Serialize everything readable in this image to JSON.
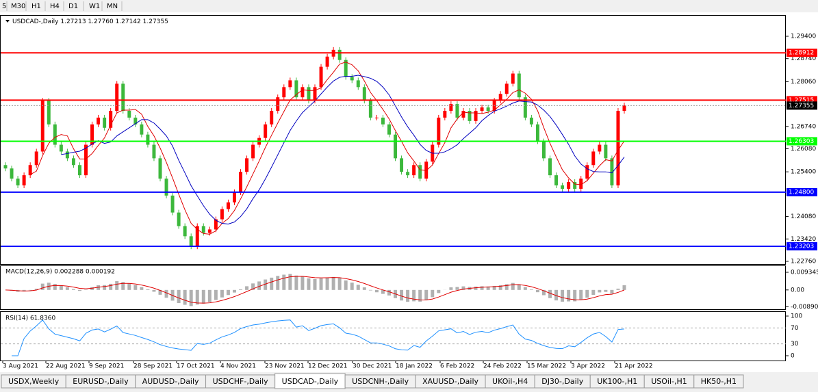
{
  "toolbar": {
    "timeframes": [
      "5",
      "M30",
      "H1",
      "H4",
      "D1",
      "W1",
      "MN"
    ]
  },
  "header": {
    "symbol": "USDCAD-,Daily",
    "open": 1.27213,
    "high": 1.2776,
    "low": 1.27142,
    "close": 1.27355,
    "open_label": "1.27213",
    "high_label": "1.27760",
    "low_label": "1.27142",
    "close_label": "1.27355"
  },
  "price_axis": {
    "ylim": [
      1.22679,
      1.30026
    ],
    "ticks": [
      {
        "value": 1.294,
        "label": "1.29400"
      },
      {
        "value": 1.2874,
        "label": "1.28740"
      },
      {
        "value": 1.2806,
        "label": "1.28060"
      },
      {
        "value": 1.2674,
        "label": "1.26740"
      },
      {
        "value": 1.2608,
        "label": "1.26080"
      },
      {
        "value": 1.254,
        "label": "1.25400"
      },
      {
        "value": 1.2408,
        "label": "1.24080"
      },
      {
        "value": 1.2342,
        "label": "1.23420"
      },
      {
        "value": 1.2276,
        "label": "1.22760"
      }
    ]
  },
  "levels": [
    {
      "value": 1.28912,
      "label": "1.28912",
      "color": "#ff0000"
    },
    {
      "value": 1.27515,
      "label": "1.27515",
      "color": "#ff0000"
    },
    {
      "value": 1.26303,
      "label": "1.26303",
      "color": "#00ff00"
    },
    {
      "value": 1.248,
      "label": "1.24800",
      "color": "#0000ff"
    },
    {
      "value": 1.23203,
      "label": "1.23203",
      "color": "#0000ff"
    }
  ],
  "current_price": {
    "value": 1.27355,
    "label": "1.27355"
  },
  "candles": {
    "first_open": 1.256,
    "up_color": "#ff0000",
    "down_color": "#3cb83c",
    "closes": [
      1.255,
      1.252,
      1.25,
      1.253,
      1.256,
      1.26,
      1.275,
      1.268,
      1.262,
      1.26,
      1.258,
      1.256,
      1.253,
      1.262,
      1.268,
      1.27,
      1.267,
      1.272,
      1.28,
      1.272,
      1.27,
      1.268,
      1.265,
      1.262,
      1.258,
      1.252,
      1.247,
      1.242,
      1.238,
      1.235,
      1.232,
      1.238,
      1.236,
      1.237,
      1.24,
      1.243,
      1.245,
      1.248,
      1.254,
      1.258,
      1.262,
      1.264,
      1.268,
      1.272,
      1.276,
      1.279,
      1.281,
      1.276,
      1.279,
      1.275,
      1.279,
      1.285,
      1.288,
      1.29,
      1.287,
      1.282,
      1.281,
      1.279,
      1.275,
      1.27,
      1.27,
      1.268,
      1.265,
      1.258,
      1.254,
      1.253,
      1.256,
      1.252,
      1.257,
      1.262,
      1.27,
      1.272,
      1.274,
      1.27,
      1.272,
      1.269,
      1.272,
      1.273,
      1.272,
      1.275,
      1.277,
      1.28,
      1.283,
      1.276,
      1.27,
      1.268,
      1.263,
      1.258,
      1.253,
      1.25,
      1.249,
      1.251,
      1.249,
      1.252,
      1.256,
      1.26,
      1.262,
      1.258,
      1.25,
      1.272,
      1.2736
    ]
  },
  "macd": {
    "label": "MACD(12,26,9) 0.002288 0.000192",
    "ylim": [
      -0.0102,
      0.0126
    ],
    "ticks": [
      0.009345,
      {
        "value": 0,
        "label": "0.00"
      },
      -0.008902
    ]
  },
  "rsi": {
    "label": "RSI(14) 61.8360",
    "ylim": [
      0,
      100
    ],
    "ticks": [
      100,
      70,
      30,
      0
    ]
  },
  "dates": [
    "3 Aug 2021",
    "22 Aug 2021",
    "9 Sep 2021",
    "28 Sep 2021",
    "17 Oct 2021",
    "4 Nov 2021",
    "23 Nov 2021",
    "12 Dec 2021",
    "30 Dec 2021",
    "18 Jan 2022",
    "6 Feb 2022",
    "24 Feb 2022",
    "15 Mar 2022",
    "3 Apr 2022",
    "21 Apr 2022"
  ],
  "tabs": [
    "USDX,Weekly",
    "EURUSD-,Daily",
    "AUDUSD-,Daily",
    "USDCHF-,Daily",
    "USDCAD-,Daily",
    "USDCNH-,Daily",
    "XAUUSD-,Daily",
    "UKOil-,H4",
    "DJ30-,Daily",
    "UK100-,H1",
    "USOil-,H1",
    "HK50-,H1"
  ],
  "active_tab": 4
}
